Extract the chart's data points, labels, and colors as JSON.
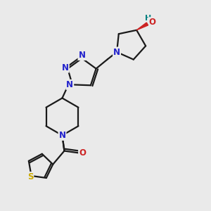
{
  "bg_color": "#eaeaea",
  "bond_color": "#1a1a1a",
  "N_color": "#2222cc",
  "O_color": "#cc2222",
  "S_color": "#ccaa00",
  "line_width": 1.6,
  "font_size_atom": 8.5,
  "fig_size": [
    3.0,
    3.0
  ],
  "dpi": 100,
  "xlim": [
    0,
    10
  ],
  "ylim": [
    0,
    10
  ]
}
